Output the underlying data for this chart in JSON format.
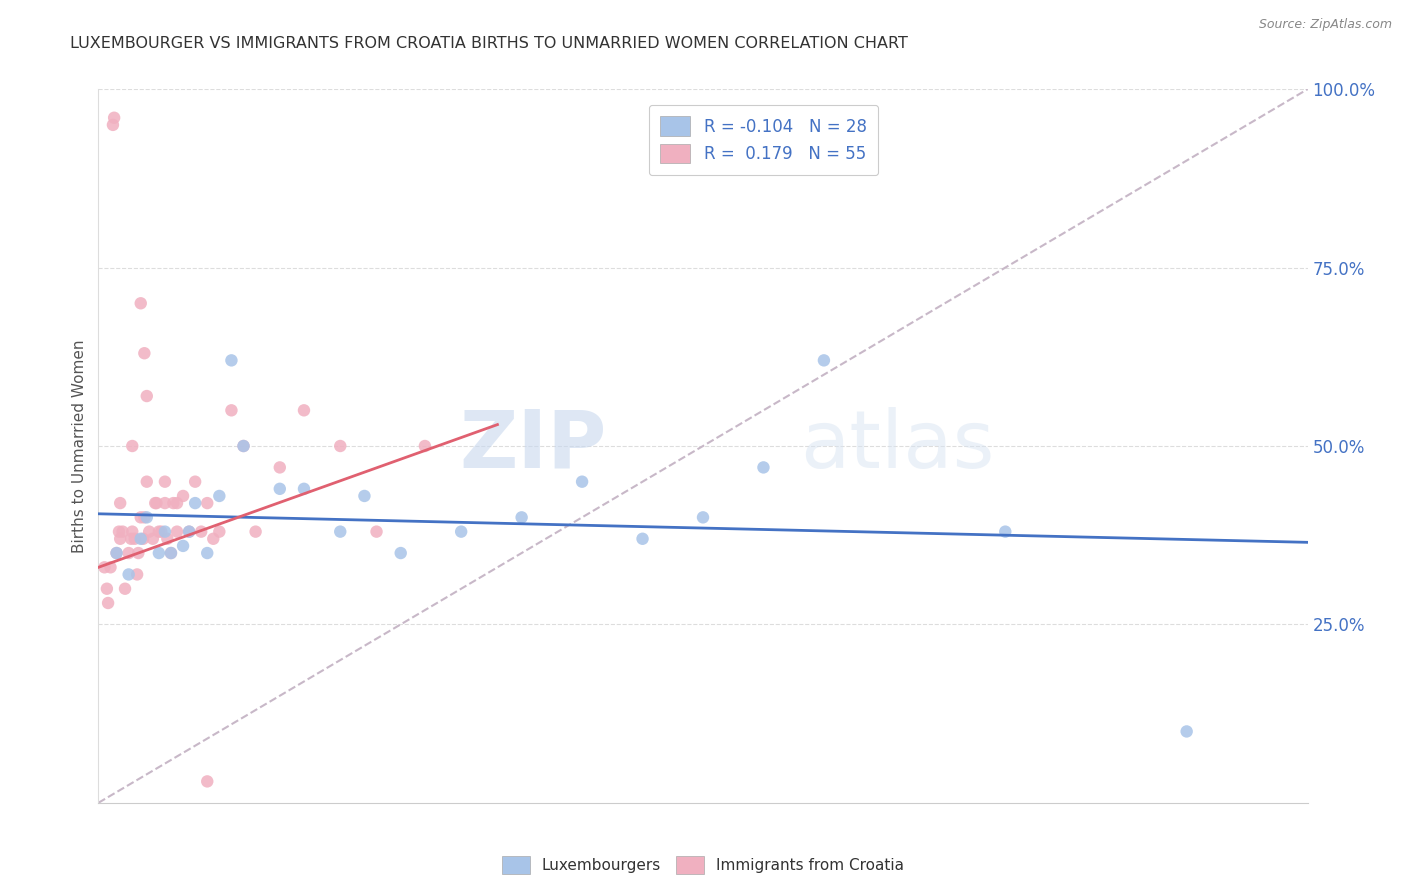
{
  "title": "LUXEMBOURGER VS IMMIGRANTS FROM CROATIA BIRTHS TO UNMARRIED WOMEN CORRELATION CHART",
  "source": "Source: ZipAtlas.com",
  "ylabel": "Births to Unmarried Women",
  "xmin": 0.0,
  "xmax": 10.0,
  "ymin": 0.0,
  "ymax": 100.0,
  "yticks": [
    25.0,
    50.0,
    75.0,
    100.0
  ],
  "ytick_labels": [
    "25.0%",
    "50.0%",
    "75.0%",
    "100.0%"
  ],
  "blue_scatter_color": "#a8c4e8",
  "pink_scatter_color": "#f0b0c0",
  "blue_line_color": "#4472c4",
  "pink_line_color": "#e06070",
  "diagonal_color": "#c8b8c8",
  "watermark_zip": "ZIP",
  "watermark_atlas": "atlas",
  "legend_r1": "R = -0.104",
  "legend_n1": "N = 28",
  "legend_r2": "R =  0.179",
  "legend_n2": "N = 55",
  "lux_label": "Luxembourgers",
  "cro_label": "Immigrants from Croatia",
  "luxembourgers_x": [
    0.15,
    0.25,
    0.35,
    0.4,
    0.5,
    0.55,
    0.6,
    0.7,
    0.75,
    0.8,
    0.9,
    1.0,
    1.1,
    1.2,
    1.5,
    1.7,
    2.0,
    2.2,
    2.5,
    3.0,
    3.5,
    4.0,
    4.5,
    5.0,
    5.5,
    6.0,
    7.5,
    9.0
  ],
  "luxembourgers_y": [
    35,
    32,
    37,
    40,
    35,
    38,
    35,
    36,
    38,
    42,
    35,
    43,
    62,
    50,
    44,
    44,
    38,
    43,
    35,
    38,
    40,
    45,
    37,
    40,
    47,
    62,
    38,
    10
  ],
  "croatia_x": [
    0.05,
    0.07,
    0.1,
    0.12,
    0.13,
    0.15,
    0.17,
    0.18,
    0.2,
    0.22,
    0.25,
    0.27,
    0.28,
    0.3,
    0.32,
    0.33,
    0.35,
    0.37,
    0.38,
    0.4,
    0.42,
    0.45,
    0.47,
    0.5,
    0.52,
    0.55,
    0.57,
    0.6,
    0.62,
    0.65,
    0.7,
    0.75,
    0.8,
    0.85,
    0.9,
    0.95,
    1.0,
    1.1,
    1.2,
    1.3,
    1.5,
    1.7,
    2.0,
    2.3,
    2.7,
    0.08,
    0.18,
    0.28,
    0.38,
    0.48,
    0.35,
    0.4,
    0.55,
    0.65,
    0.9
  ],
  "croatia_y": [
    33,
    30,
    33,
    95,
    96,
    35,
    38,
    42,
    38,
    30,
    35,
    37,
    38,
    37,
    32,
    35,
    40,
    37,
    40,
    45,
    38,
    37,
    42,
    38,
    38,
    42,
    37,
    35,
    42,
    38,
    43,
    38,
    45,
    38,
    42,
    37,
    38,
    55,
    50,
    38,
    47,
    55,
    50,
    38,
    50,
    28,
    37,
    50,
    63,
    42,
    70,
    57,
    45,
    42,
    3
  ]
}
